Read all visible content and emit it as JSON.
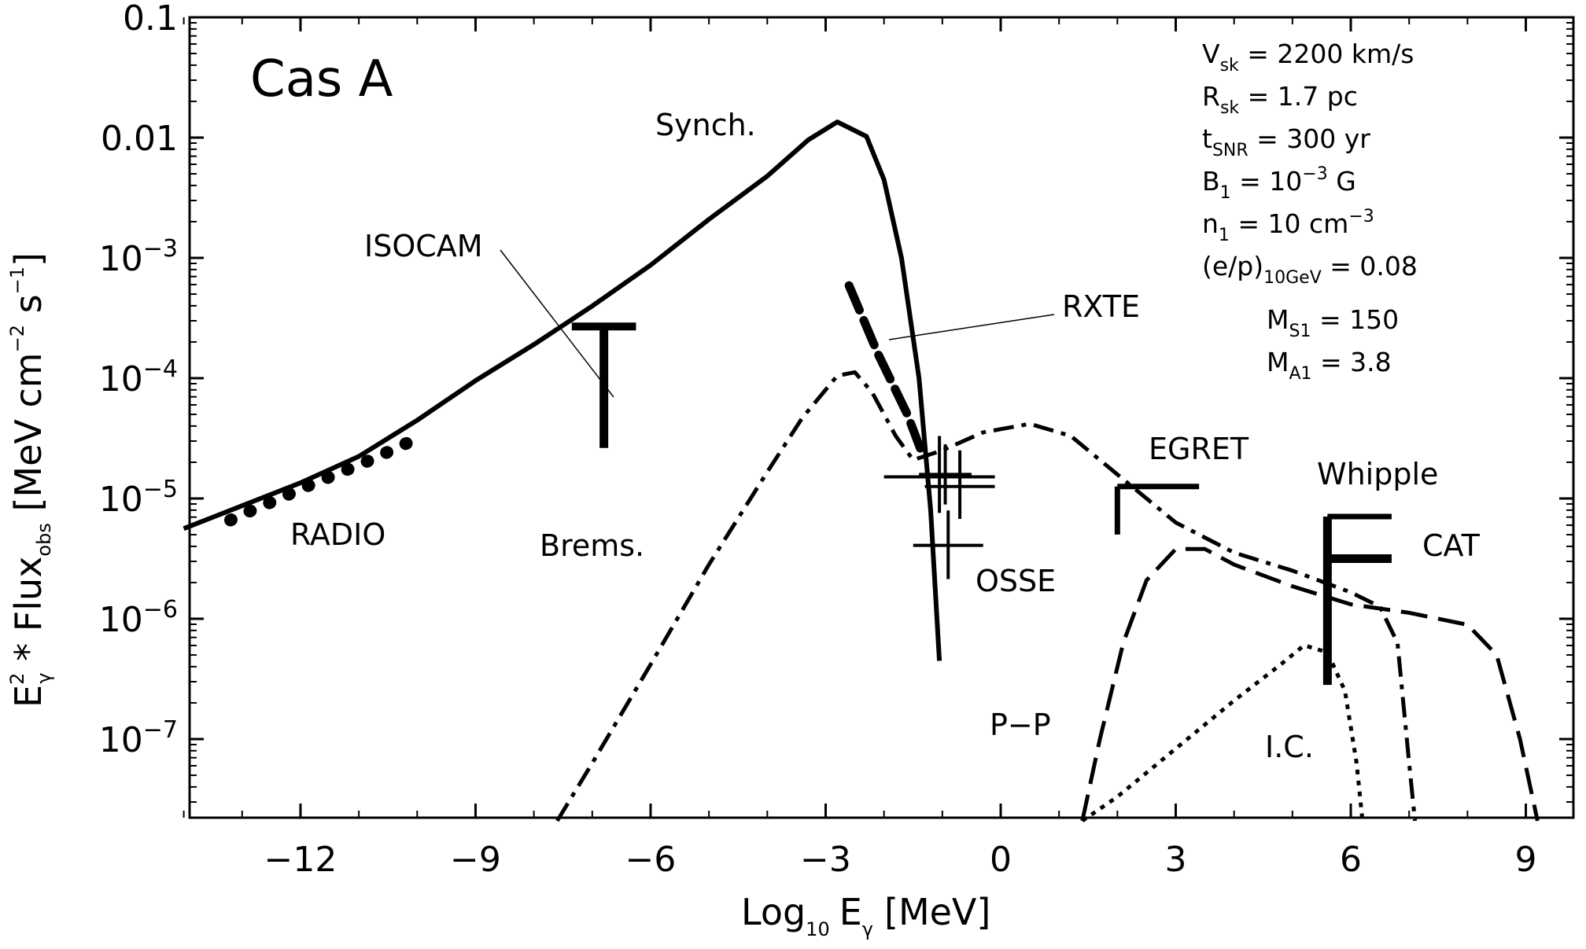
{
  "chart_data": {
    "type": "line",
    "title": "Cas A",
    "xlabel": {
      "base": "Log",
      "base_sub": "10",
      "var": "E",
      "var_sub": "γ",
      "unit": "[MeV]"
    },
    "ylabel": {
      "E": "E",
      "E_sub": "γ",
      "E_sup": "2",
      "op": " * Flux",
      "flux_sub": "obs",
      "unit_open": " [MeV cm",
      "cm_exp": "−2",
      "s": " s",
      "s_exp": "−1",
      "unit_close": "]"
    },
    "xlim": [
      -14,
      9.8
    ],
    "ylim_log10": [
      -7.68,
      -1
    ],
    "x_ticks": [
      -12,
      -9,
      -6,
      -3,
      0,
      3,
      6,
      9
    ],
    "x_tick_labels": [
      "−12",
      "−9",
      "−6",
      "−3",
      "0",
      "3",
      "6",
      "9"
    ],
    "y_ticks_log10": [
      -1,
      -2,
      -3,
      -4,
      -5,
      -6,
      -7
    ],
    "y_tick_labels": [
      {
        "text": "0.1"
      },
      {
        "text": "0.01"
      },
      {
        "base": "10",
        "exp": "−3"
      },
      {
        "base": "10",
        "exp": "−4"
      },
      {
        "base": "10",
        "exp": "−5"
      },
      {
        "base": "10",
        "exp": "−6"
      },
      {
        "base": "10",
        "exp": "−7"
      }
    ],
    "series": [
      {
        "name": "Synch.",
        "style": "solid",
        "points": [
          [
            -14,
            -5.25
          ],
          [
            -13,
            -5.06
          ],
          [
            -12,
            -4.87
          ],
          [
            -11,
            -4.65
          ],
          [
            -10,
            -4.35
          ],
          [
            -9,
            -4.02
          ],
          [
            -8,
            -3.72
          ],
          [
            -7,
            -3.4
          ],
          [
            -6,
            -3.06
          ],
          [
            -5,
            -2.68
          ],
          [
            -4,
            -2.32
          ],
          [
            -3.3,
            -2.02
          ],
          [
            -2.8,
            -1.87
          ],
          [
            -2.3,
            -1.99
          ],
          [
            -2.0,
            -2.35
          ],
          [
            -1.7,
            -3.0
          ],
          [
            -1.4,
            -4.0
          ],
          [
            -1.2,
            -5.1
          ],
          [
            -1.05,
            -6.35
          ]
        ]
      },
      {
        "name": "Brems.",
        "style": "dashdot",
        "points": [
          [
            -7.6,
            -7.68
          ],
          [
            -7,
            -7.2
          ],
          [
            -6,
            -6.38
          ],
          [
            -5,
            -5.55
          ],
          [
            -4,
            -4.78
          ],
          [
            -3.4,
            -4.33
          ],
          [
            -2.8,
            -3.98
          ],
          [
            -2.5,
            -3.95
          ],
          [
            -2.2,
            -4.12
          ],
          [
            -1.8,
            -4.48
          ],
          [
            -1.5,
            -4.68
          ],
          [
            -1.0,
            -4.6
          ],
          [
            -0.3,
            -4.45
          ],
          [
            0.5,
            -4.38
          ],
          [
            1.2,
            -4.48
          ],
          [
            2.0,
            -4.8
          ],
          [
            3.0,
            -5.2
          ],
          [
            4.0,
            -5.45
          ],
          [
            5.0,
            -5.6
          ],
          [
            6.0,
            -5.78
          ],
          [
            6.5,
            -5.9
          ],
          [
            6.8,
            -6.2
          ],
          [
            7.0,
            -7.2
          ],
          [
            7.1,
            -7.68
          ]
        ]
      },
      {
        "name": "P-P",
        "style": "longdash",
        "points": [
          [
            1.4,
            -7.68
          ],
          [
            1.7,
            -7.0
          ],
          [
            2.1,
            -6.2
          ],
          [
            2.5,
            -5.68
          ],
          [
            3.0,
            -5.42
          ],
          [
            3.5,
            -5.42
          ],
          [
            4.0,
            -5.55
          ],
          [
            5.0,
            -5.73
          ],
          [
            6.0,
            -5.88
          ],
          [
            7.0,
            -5.95
          ],
          [
            8.0,
            -6.05
          ],
          [
            8.5,
            -6.3
          ],
          [
            8.9,
            -7.0
          ],
          [
            9.2,
            -7.68
          ]
        ]
      },
      {
        "name": "I.C.",
        "style": "dotted",
        "points": [
          [
            1.4,
            -7.68
          ],
          [
            2.0,
            -7.48
          ],
          [
            3.0,
            -7.08
          ],
          [
            4.0,
            -6.68
          ],
          [
            4.8,
            -6.38
          ],
          [
            5.2,
            -6.22
          ],
          [
            5.6,
            -6.28
          ],
          [
            5.9,
            -6.6
          ],
          [
            6.1,
            -7.2
          ],
          [
            6.2,
            -7.68
          ]
        ]
      }
    ],
    "radio": {
      "points": [
        [
          -13.2,
          -5.18
        ],
        [
          -12.8,
          -5.09
        ],
        [
          -12.4,
          -5.01
        ],
        [
          -12.0,
          -4.92
        ],
        [
          -11.6,
          -4.84
        ],
        [
          -11.2,
          -4.76
        ],
        [
          -10.8,
          -4.68
        ],
        [
          -10.4,
          -4.59
        ],
        [
          -10.0,
          -4.5
        ]
      ]
    },
    "isocam": {
      "x": -6.8,
      "y_low": -4.58,
      "y_high": -3.57,
      "cap_half_width": 0.55
    },
    "rxte": {
      "points": [
        [
          -2.6,
          -3.23
        ],
        [
          -2.1,
          -3.8
        ],
        [
          -1.6,
          -4.3
        ],
        [
          -1.35,
          -4.62
        ]
      ]
    },
    "osse": {
      "crosses": [
        {
          "x": -1.05,
          "y": -4.82,
          "xerr": 0.95,
          "y_low": -5.12,
          "y_high": -4.48
        },
        {
          "x": -0.95,
          "y": -4.8,
          "xerr": 0.45,
          "y_low": -5.05,
          "y_high": -4.55
        },
        {
          "x": -0.7,
          "y": -4.9,
          "xerr": 0.6,
          "y_low": -5.17,
          "y_high": -4.6
        },
        {
          "x": -0.9,
          "y": -5.39,
          "xerr": 0.6,
          "y_low": -5.67,
          "y_high": -5.1
        }
      ]
    },
    "egret": {
      "x_start": 2.0,
      "x_end": 3.4,
      "y": -4.9,
      "y_low": -5.3
    },
    "whipple": {
      "x": 5.6,
      "x_end": 6.7,
      "y_top": -5.15,
      "y_low": -6.55
    },
    "cat": {
      "x": 5.6,
      "x_end": 6.7,
      "y": -5.5
    },
    "labels": {
      "synch": "Synch.",
      "isocam": "ISOCAM",
      "rxte": "RXTE",
      "radio": "RADIO",
      "brems": "Brems.",
      "osse": "OSSE",
      "egret": "EGRET",
      "whipple": "Whipple",
      "cat": "CAT",
      "pp": "P−P",
      "ic": "I.C."
    },
    "parameters": [
      {
        "sym": "V",
        "sub": "sk",
        "val": " = 2200 km/s"
      },
      {
        "sym": "R",
        "sub": "sk",
        "val": " = 1.7 pc"
      },
      {
        "sym": "t",
        "sub": "SNR",
        "val": " = 300 yr"
      },
      {
        "sym": "B",
        "sub": "1",
        "val": " = 10",
        "sup": "−3",
        "tail": " G"
      },
      {
        "sym": "n",
        "sub": "1",
        "val": " = 10 cm",
        "sup": "−3"
      },
      {
        "sym": "(e/p)",
        "sub": "10GeV",
        "val": " = 0.08"
      },
      {
        "sym": "M",
        "sub": "S1",
        "val": " = 150"
      },
      {
        "sym": "M",
        "sub": "A1",
        "val": " = 3.8"
      }
    ]
  }
}
